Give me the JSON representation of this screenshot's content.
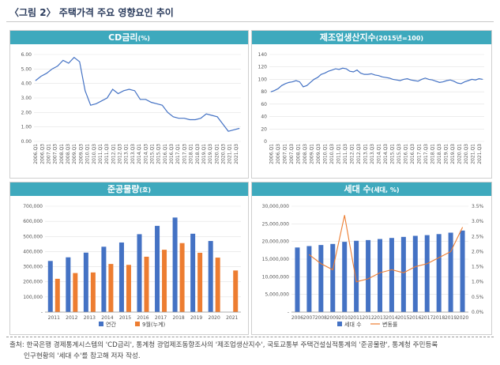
{
  "figure_title": "〈그림 2〉 주택가격 주요 영향요인 추이",
  "source": {
    "line1": "출처: 한국은행 경제통계시스템의 'CD금리', 통계청 광업제조동향조사의 '제조업생산지수', 국토교통부 주택건설실적통계의 '준공물량', 통계청 주민등록",
    "line2": "인구현황의 '세대 수'를 참고해 저자 작성."
  },
  "colors": {
    "header": "#3ea9bd",
    "line": "#4472c4",
    "bar": "#4472c4",
    "bar2": "#ed7d31"
  },
  "chart_data": [
    {
      "type": "line",
      "title": "CD금리",
      "unit": "(%)",
      "x_labels": [
        "2006.Q1",
        "2006.Q3",
        "2007.Q1",
        "2007.Q3",
        "2008.Q1",
        "2008.Q3",
        "2009.Q1",
        "2009.Q3",
        "2010.Q1",
        "2010.Q3",
        "2011.Q1",
        "2011.Q3",
        "2012.Q1",
        "2012.Q3",
        "2013.Q1",
        "2013.Q3",
        "2014.Q1",
        "2014.Q3",
        "2015.Q1",
        "2015.Q3",
        "2016.Q1",
        "2016.Q3",
        "2017.Q1",
        "2017.Q3",
        "2018.Q1",
        "2018.Q3",
        "2019.Q1",
        "2019.Q3",
        "2020.Q1",
        "2020.Q3",
        "2021.Q1",
        "2021.Q3"
      ],
      "y_ticks": [
        "0.00",
        "1.00",
        "2.00",
        "3.00",
        "4.00",
        "5.00",
        "6.00"
      ],
      "ylim": [
        0,
        6
      ],
      "series": [
        {
          "name": "CD금리",
          "values": [
            4.2,
            4.5,
            4.7,
            5.0,
            5.2,
            5.6,
            5.4,
            5.8,
            5.5,
            3.5,
            2.5,
            2.6,
            2.8,
            3.0,
            3.6,
            3.3,
            3.5,
            3.6,
            3.5,
            2.9,
            2.9,
            2.7,
            2.6,
            2.5,
            2.0,
            1.7,
            1.6,
            1.6,
            1.5,
            1.5,
            1.6,
            1.9,
            1.8,
            1.7,
            1.2,
            0.7,
            0.8,
            0.9
          ]
        }
      ]
    },
    {
      "type": "line",
      "title": "제조업생산지수",
      "unit": "(2015년=100)",
      "x_labels": [
        "2006.Q1",
        "2006.Q3",
        "2007.Q1",
        "2007.Q3",
        "2008.Q1",
        "2008.Q3",
        "2009.Q1",
        "2009.Q3",
        "2010.Q1",
        "2010.Q3",
        "2011.Q1",
        "2011.Q3",
        "2012.Q1",
        "2012.Q3",
        "2013.Q1",
        "2013.Q3",
        "2014.Q1",
        "2014.Q3",
        "2015.Q1",
        "2015.Q3",
        "2016.Q1",
        "2016.Q3",
        "2017.Q1",
        "2017.Q3",
        "2018.Q1",
        "2018.Q3",
        "2019.Q1",
        "2019.Q3",
        "2020.Q1",
        "2020.Q3",
        "2021.Q1",
        "2021.Q3"
      ],
      "y_ticks": [
        "0",
        "20",
        "40",
        "60",
        "80",
        "100",
        "120",
        "140"
      ],
      "ylim": [
        0,
        140
      ],
      "series": [
        {
          "name": "제조업생산지수",
          "values": [
            80,
            82,
            85,
            90,
            93,
            95,
            96,
            98,
            96,
            88,
            90,
            95,
            100,
            103,
            108,
            110,
            113,
            115,
            117,
            116,
            118,
            117,
            113,
            112,
            115,
            110,
            108,
            108,
            109,
            107,
            106,
            104,
            103,
            102,
            100,
            99,
            98,
            100,
            101,
            99,
            98,
            97,
            100,
            102,
            100,
            99,
            97,
            95,
            96,
            98,
            99,
            97,
            94,
            93,
            96,
            98,
            100,
            99,
            101,
            100
          ]
        }
      ]
    },
    {
      "type": "bar",
      "title": "준공물량",
      "unit": "(호)",
      "categories": [
        "2011",
        "2012",
        "2013",
        "2014",
        "2015",
        "2016",
        "2017",
        "2018",
        "2019",
        "2020",
        "2021"
      ],
      "y_ticks": [
        "-",
        "100,000",
        "200,000",
        "300,000",
        "400,000",
        "500,000",
        "600,000",
        "700,000"
      ],
      "ylim": [
        0,
        700000
      ],
      "series": [
        {
          "name": "연간",
          "values": [
            338000,
            362000,
            393000,
            432000,
            460000,
            515000,
            570000,
            625000,
            518000,
            470000,
            null
          ]
        },
        {
          "name": "9월(누계)",
          "values": [
            220000,
            258000,
            262000,
            318000,
            312000,
            366000,
            412000,
            456000,
            392000,
            360000,
            275000
          ]
        }
      ]
    },
    {
      "type": "bar",
      "title": "세대 수",
      "unit": "(세대, %)",
      "categories": [
        "2006",
        "2007",
        "2008",
        "2009",
        "2010",
        "2011",
        "2012",
        "2013",
        "2014",
        "2015",
        "2016",
        "2017",
        "2018",
        "2019",
        "2020"
      ],
      "y_ticks": [
        "-",
        "5,000,000",
        "10,000,000",
        "15,000,000",
        "20,000,000",
        "25,000,000",
        "30,000,000"
      ],
      "y2_ticks": [
        "0.0%",
        "0.5%",
        "1.0%",
        "1.5%",
        "2.0%",
        "2.5%",
        "3.0%",
        "3.5%"
      ],
      "ylim": [
        0,
        30000000
      ],
      "y2lim": [
        0,
        3.5
      ],
      "series": [
        {
          "name": "세대 수",
          "values": [
            18300000,
            18700000,
            19000000,
            19300000,
            19900000,
            20200000,
            20400000,
            20700000,
            21000000,
            21300000,
            21600000,
            21800000,
            22100000,
            22500000,
            23100000
          ]
        },
        {
          "name": "변동률",
          "axis": "right",
          "values": [
            null,
            1.9,
            1.6,
            1.4,
            3.2,
            1.0,
            1.1,
            1.3,
            1.4,
            1.3,
            1.5,
            1.6,
            1.8,
            2.0,
            2.8
          ]
        }
      ]
    }
  ]
}
